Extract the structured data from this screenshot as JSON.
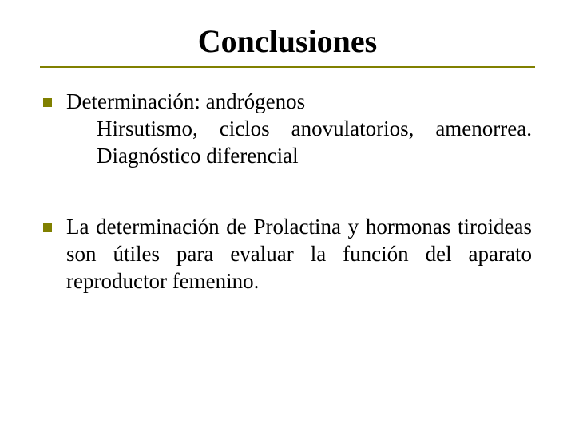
{
  "slide": {
    "title": "Conclusiones",
    "title_color": "#000000",
    "title_fontsize": 40,
    "rule_color": "#808000",
    "background_color": "#ffffff",
    "bullets": [
      {
        "marker_color": "#808000",
        "line1": "Determinación: andrógenos",
        "line2": "Hirsutismo, ciclos anovulatorios, amenorrea. Diagnóstico diferencial"
      },
      {
        "marker_color": "#808000",
        "text": "La determinación de Prolactina y hormonas tiroideas son útiles para evaluar la función del aparato reproductor femenino."
      }
    ],
    "body_fontsize": 27,
    "body_color": "#000000",
    "font_family": "Times New Roman"
  }
}
